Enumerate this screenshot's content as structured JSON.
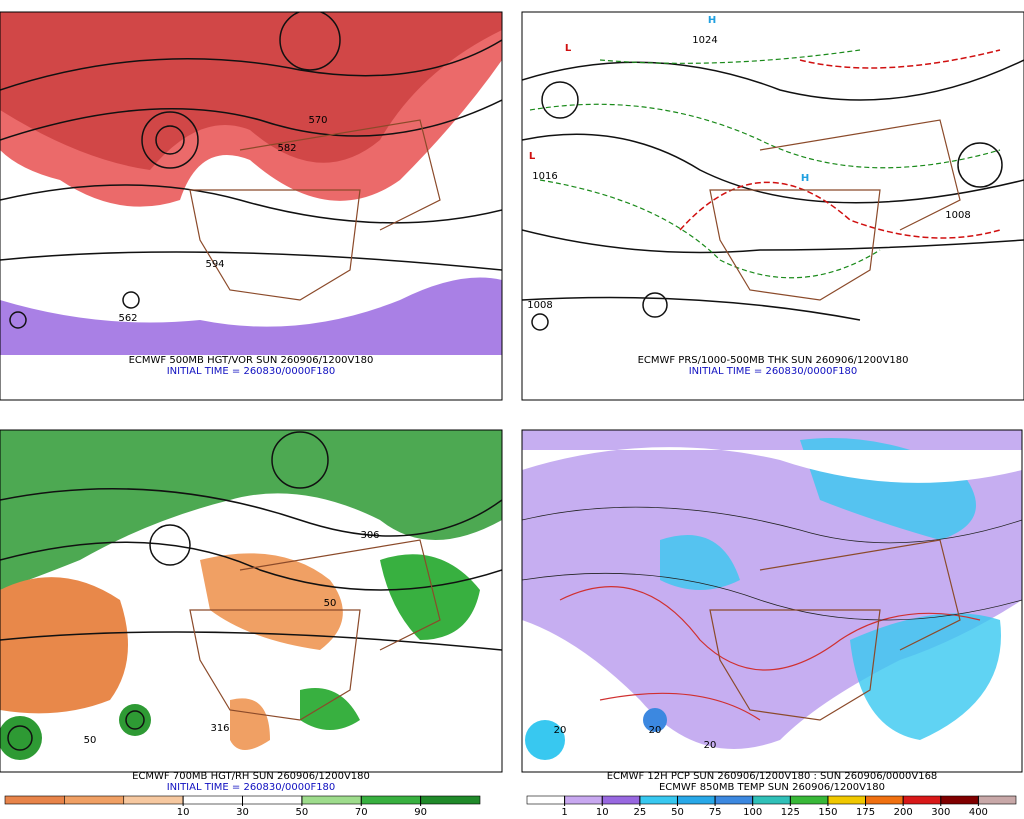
{
  "panels": [
    {
      "caption": "ECMWF 500MB HGT/VOR SUN 260906/1200V180",
      "initial_time": "INITIAL TIME = 260830/0000F180",
      "labels": [
        "594",
        "582",
        "562",
        "570"
      ]
    },
    {
      "caption": "ECMWF PRS/1000-500MB THK SUN 260906/1200V180",
      "initial_time": "INITIAL TIME = 260830/0000F180",
      "labels": [
        "H",
        "L",
        "L",
        "1024",
        "1016",
        "1008",
        "1008",
        "H"
      ]
    },
    {
      "caption": "ECMWF 700MB HGT/RH SUN 260906/1200V180",
      "initial_time": "INITIAL TIME = 260830/0000F180",
      "labels": [
        "50",
        "50",
        "316",
        "306"
      ]
    },
    {
      "caption": "ECMWF 12H PCP SUN 260906/1200V180 : SUN 260906/0000V168",
      "initial_time": "ECMWF 850MB TEMP SUN 260906/1200V180",
      "labels": [
        "20",
        "20",
        "20"
      ]
    }
  ],
  "legends": [
    {
      "labels": [
        10,
        30,
        50,
        70,
        90
      ],
      "colors": [
        "#e8844a",
        "#f0a064",
        "#f6c8a0",
        "#ffffff",
        "#ffffff",
        "#9edc8c",
        "#38b040",
        "#208a2a"
      ]
    },
    {
      "labels": [
        1,
        10,
        25,
        50,
        75,
        100,
        125,
        150,
        175,
        200,
        300,
        400
      ],
      "colors": [
        "#ffffff",
        "#c8a8f0",
        "#9868e0",
        "#38c8f0",
        "#28a8e8",
        "#3c88e0",
        "#30c0b8",
        "#38b838",
        "#f0c800",
        "#f07010",
        "#d81818",
        "#800000",
        "#c8a8a8"
      ]
    }
  ]
}
